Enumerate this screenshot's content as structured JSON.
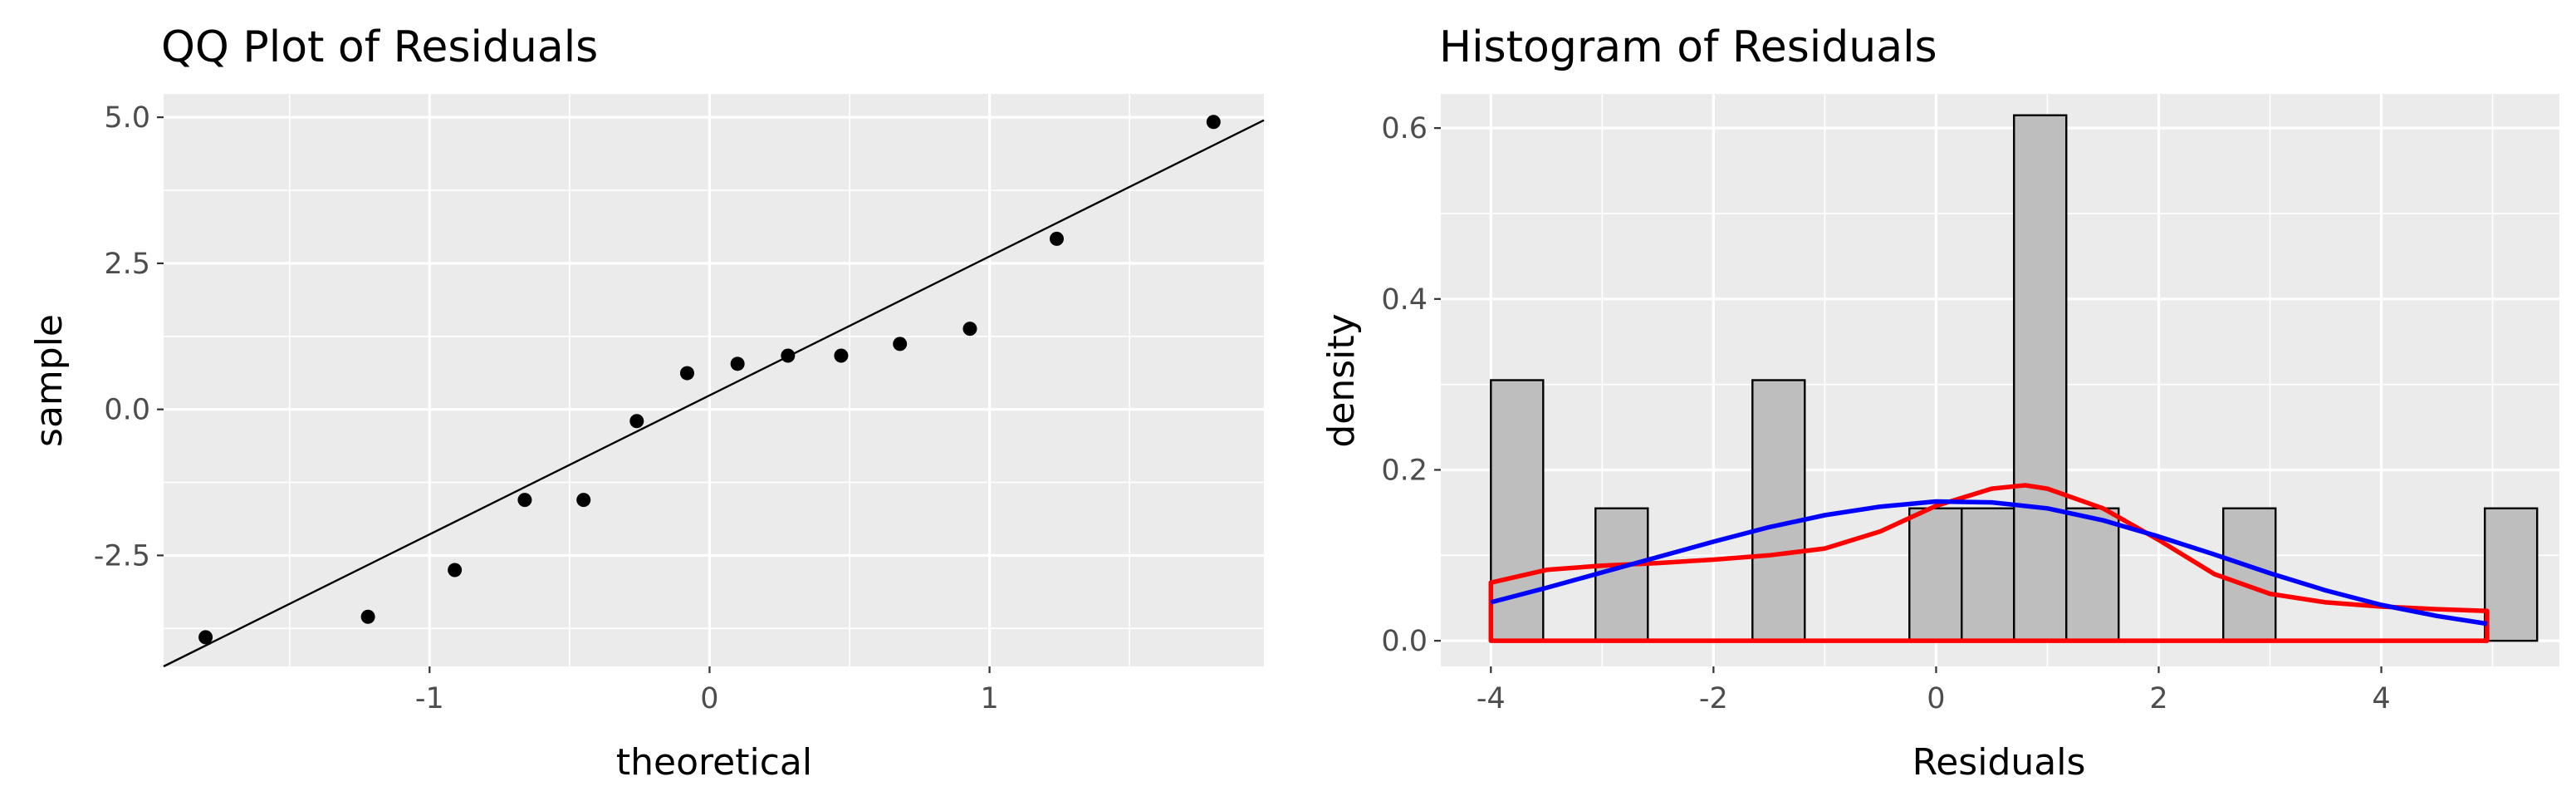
{
  "chart_data": [
    {
      "type": "scatter",
      "title": "QQ Plot of Residuals",
      "xlabel": "theoretical",
      "ylabel": "sample",
      "xlim": [
        -1.95,
        1.98
      ],
      "ylim": [
        -4.4,
        5.4
      ],
      "x_ticks": [
        -1,
        0,
        1
      ],
      "x_tick_labels": [
        "-1",
        "0",
        "1"
      ],
      "y_ticks": [
        -2.5,
        0.0,
        2.5,
        5.0
      ],
      "y_tick_labels": [
        "-2.5",
        "0.0",
        "2.5",
        "5.0"
      ],
      "grid": true,
      "points": [
        {
          "x": -1.8,
          "y": -3.9
        },
        {
          "x": -1.22,
          "y": -3.55
        },
        {
          "x": -0.91,
          "y": -2.75
        },
        {
          "x": -0.66,
          "y": -1.55
        },
        {
          "x": -0.45,
          "y": -1.55
        },
        {
          "x": -0.26,
          "y": -0.2
        },
        {
          "x": -0.08,
          "y": 0.62
        },
        {
          "x": 0.1,
          "y": 0.78
        },
        {
          "x": 0.28,
          "y": 0.92
        },
        {
          "x": 0.47,
          "y": 0.92
        },
        {
          "x": 0.68,
          "y": 1.12
        },
        {
          "x": 0.93,
          "y": 1.38
        },
        {
          "x": 1.24,
          "y": 2.92
        },
        {
          "x": 1.8,
          "y": 4.92
        }
      ],
      "reference_line": {
        "x": [
          -1.95,
          1.98
        ],
        "y": [
          -4.4,
          4.95
        ]
      },
      "colors": {
        "points": "#000000",
        "line": "#000000",
        "panel": "#ebebeb",
        "grid": "#ffffff"
      }
    },
    {
      "type": "bar",
      "subtype": "histogram",
      "title": "Histogram of Residuals",
      "xlabel": "Residuals",
      "ylabel": "density",
      "xlim": [
        -4.45,
        5.6
      ],
      "ylim": [
        -0.03,
        0.64
      ],
      "x_ticks": [
        -4,
        -2,
        0,
        2,
        4
      ],
      "x_tick_labels": [
        "-4",
        "-2",
        "0",
        "2",
        "4"
      ],
      "y_ticks": [
        0.0,
        0.2,
        0.4,
        0.6
      ],
      "y_tick_labels": [
        "0.0",
        "0.2",
        "0.4",
        "0.6"
      ],
      "grid": true,
      "bins": [
        {
          "start": -4.0,
          "end": -3.53,
          "density": 0.305
        },
        {
          "start": -3.06,
          "end": -2.59,
          "density": 0.155
        },
        {
          "start": -1.65,
          "end": -1.18,
          "density": 0.305
        },
        {
          "start": -0.24,
          "end": 0.23,
          "density": 0.155
        },
        {
          "start": 0.23,
          "end": 0.7,
          "density": 0.155
        },
        {
          "start": 0.7,
          "end": 1.17,
          "density": 0.615
        },
        {
          "start": 1.17,
          "end": 1.64,
          "density": 0.155
        },
        {
          "start": 2.58,
          "end": 3.05,
          "density": 0.155
        },
        {
          "start": 4.93,
          "end": 5.4,
          "density": 0.155
        }
      ],
      "series": [
        {
          "kind": "density",
          "color": "#ff0000",
          "x": [
            -4.0,
            -3.5,
            -3.0,
            -2.5,
            -2.0,
            -1.5,
            -1.0,
            -0.5,
            0.0,
            0.5,
            0.8,
            1.0,
            1.5,
            2.0,
            2.5,
            3.0,
            3.5,
            4.0,
            4.5,
            4.95
          ],
          "y": [
            0.068,
            0.083,
            0.088,
            0.091,
            0.095,
            0.1,
            0.108,
            0.128,
            0.158,
            0.178,
            0.182,
            0.178,
            0.155,
            0.118,
            0.078,
            0.055,
            0.045,
            0.04,
            0.037,
            0.035
          ],
          "closed_to_baseline": true
        },
        {
          "kind": "normal-curve",
          "color": "#0000ff",
          "x": [
            -4.0,
            -3.5,
            -3.0,
            -2.5,
            -2.0,
            -1.5,
            -1.0,
            -0.5,
            0.0,
            0.5,
            1.0,
            1.5,
            2.0,
            2.5,
            3.0,
            3.5,
            4.0,
            4.5,
            4.95
          ],
          "y": [
            0.045,
            0.062,
            0.08,
            0.098,
            0.116,
            0.133,
            0.147,
            0.157,
            0.163,
            0.162,
            0.155,
            0.141,
            0.122,
            0.101,
            0.079,
            0.059,
            0.042,
            0.029,
            0.02
          ]
        }
      ],
      "colors": {
        "bar_fill": "#bebebe",
        "bar_edge": "#000000",
        "panel": "#ebebeb",
        "grid": "#ffffff"
      }
    }
  ]
}
